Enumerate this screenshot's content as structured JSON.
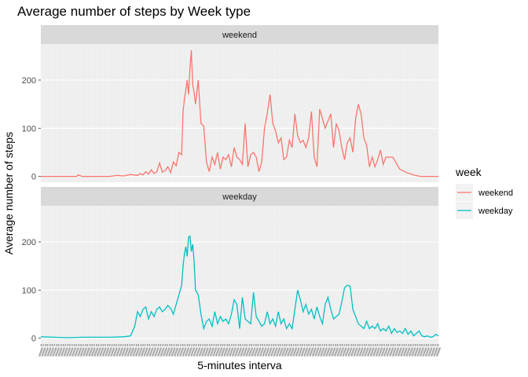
{
  "chart_data": {
    "type": "line",
    "title": "Average number of steps by Week type",
    "xlabel": "5-minutes interva",
    "ylabel": "Average number of steps",
    "ylim": [
      -12,
      275
    ],
    "y_ticks": [
      0,
      100,
      200
    ],
    "x_range": [
      0,
      288
    ],
    "x_tick_labels": "illegible dense interval tick labels",
    "grid": true,
    "legend_title": "week",
    "legend_position": "right",
    "colors": {
      "weekend": "#F8766D",
      "weekday": "#00BFC4"
    },
    "panels": [
      {
        "strip": "weekend",
        "series": {
          "name": "weekend",
          "x": [
            0,
            10,
            20,
            26,
            27,
            30,
            40,
            50,
            55,
            60,
            65,
            70,
            72,
            74,
            76,
            78,
            80,
            82,
            84,
            86,
            88,
            90,
            92,
            94,
            96,
            98,
            100,
            102,
            103,
            104,
            105,
            106,
            107,
            108,
            109,
            110,
            111,
            112,
            114,
            116,
            118,
            120,
            122,
            124,
            126,
            128,
            130,
            132,
            134,
            136,
            138,
            140,
            142,
            144,
            146,
            148,
            150,
            152,
            154,
            156,
            158,
            160,
            162,
            164,
            166,
            168,
            170,
            172,
            174,
            176,
            178,
            180,
            182,
            184,
            186,
            188,
            190,
            192,
            194,
            196,
            198,
            200,
            202,
            204,
            206,
            208,
            210,
            212,
            214,
            216,
            218,
            220,
            222,
            224,
            226,
            228,
            230,
            232,
            234,
            236,
            238,
            240,
            242,
            244,
            246,
            248,
            250,
            255,
            260,
            265,
            270,
            275,
            280,
            288
          ],
          "y": [
            0,
            0,
            0,
            0,
            3,
            0,
            0,
            0,
            2,
            1,
            4,
            2,
            6,
            3,
            10,
            5,
            14,
            6,
            10,
            28,
            9,
            12,
            20,
            8,
            30,
            22,
            50,
            45,
            135,
            160,
            180,
            200,
            170,
            225,
            262,
            190,
            175,
            150,
            200,
            110,
            105,
            30,
            10,
            40,
            25,
            50,
            15,
            40,
            35,
            45,
            20,
            60,
            40,
            35,
            25,
            110,
            20,
            45,
            50,
            40,
            10,
            30,
            100,
            130,
            170,
            110,
            95,
            70,
            80,
            35,
            40,
            75,
            60,
            130,
            85,
            70,
            75,
            60,
            80,
            135,
            40,
            20,
            140,
            120,
            100,
            115,
            130,
            60,
            110,
            95,
            60,
            35,
            70,
            80,
            50,
            120,
            150,
            130,
            80,
            65,
            20,
            40,
            20,
            35,
            55,
            25,
            40,
            40,
            15,
            8,
            3,
            0,
            0,
            0
          ]
        }
      },
      {
        "strip": "weekday",
        "series": {
          "name": "weekday",
          "x": [
            0,
            10,
            20,
            30,
            40,
            50,
            60,
            65,
            68,
            70,
            72,
            74,
            76,
            78,
            80,
            82,
            84,
            86,
            88,
            90,
            92,
            94,
            96,
            98,
            100,
            102,
            103,
            104,
            105,
            106,
            107,
            108,
            109,
            110,
            111,
            112,
            114,
            116,
            118,
            120,
            122,
            124,
            126,
            128,
            130,
            132,
            134,
            136,
            138,
            140,
            142,
            144,
            146,
            148,
            150,
            152,
            154,
            156,
            158,
            160,
            162,
            164,
            166,
            168,
            170,
            172,
            174,
            176,
            178,
            180,
            182,
            184,
            186,
            188,
            190,
            192,
            194,
            196,
            198,
            200,
            202,
            204,
            206,
            208,
            210,
            212,
            214,
            216,
            218,
            220,
            222,
            224,
            226,
            228,
            230,
            232,
            234,
            236,
            238,
            240,
            242,
            244,
            246,
            248,
            250,
            252,
            254,
            256,
            258,
            260,
            262,
            264,
            266,
            268,
            270,
            272,
            274,
            276,
            278,
            280,
            282,
            284,
            286,
            288
          ],
          "y": [
            3,
            2,
            1,
            2,
            2,
            2,
            3,
            5,
            25,
            55,
            45,
            60,
            65,
            40,
            55,
            45,
            60,
            65,
            55,
            60,
            68,
            62,
            50,
            70,
            90,
            110,
            150,
            175,
            190,
            170,
            210,
            212,
            180,
            195,
            160,
            100,
            90,
            50,
            20,
            35,
            40,
            25,
            55,
            30,
            45,
            35,
            40,
            30,
            50,
            80,
            70,
            20,
            85,
            40,
            35,
            30,
            95,
            45,
            35,
            25,
            30,
            55,
            30,
            40,
            25,
            55,
            30,
            40,
            20,
            30,
            20,
            60,
            100,
            80,
            55,
            70,
            50,
            60,
            40,
            65,
            45,
            30,
            70,
            85,
            60,
            40,
            45,
            50,
            75,
            105,
            110,
            108,
            60,
            45,
            30,
            25,
            20,
            35,
            20,
            25,
            20,
            30,
            15,
            20,
            15,
            25,
            10,
            20,
            12,
            15,
            10,
            20,
            8,
            15,
            5,
            10,
            15,
            5,
            3,
            5,
            2,
            3,
            8,
            5
          ]
        }
      }
    ]
  }
}
